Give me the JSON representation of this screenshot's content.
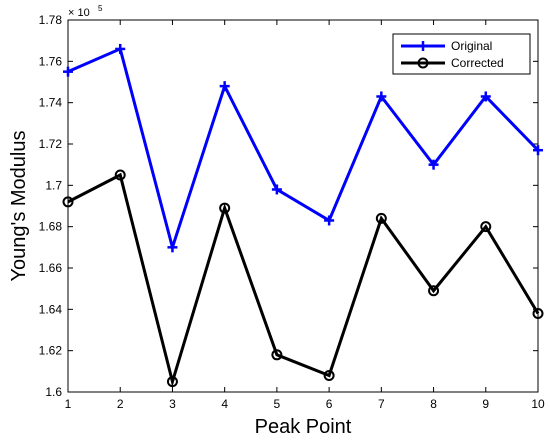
{
  "chart_data": {
    "type": "line",
    "title": "",
    "xlabel": "Peak Point",
    "ylabel": "Young's Modulus",
    "y_multiplier_label": "× 10",
    "y_multiplier_exponent": "5",
    "xlim": [
      1,
      10
    ],
    "ylim": [
      1.6,
      1.78
    ],
    "x_ticks": [
      1,
      2,
      3,
      4,
      5,
      6,
      7,
      8,
      9,
      10
    ],
    "x_tick_labels": [
      "1",
      "2",
      "3",
      "4",
      "5",
      "6",
      "7",
      "8",
      "9",
      "10"
    ],
    "y_ticks": [
      1.6,
      1.62,
      1.64,
      1.66,
      1.68,
      1.7,
      1.72,
      1.74,
      1.76,
      1.78
    ],
    "y_tick_labels": [
      "1.6",
      "1.62",
      "1.64",
      "1.66",
      "1.68",
      "1.7",
      "1.72",
      "1.74",
      "1.76",
      "1.78"
    ],
    "grid": false,
    "legend_position": "top-right",
    "x": [
      1,
      2,
      3,
      4,
      5,
      6,
      7,
      8,
      9,
      10
    ],
    "series": [
      {
        "name": "Original",
        "color": "#0000ff",
        "marker": "plus",
        "values": [
          1.755,
          1.766,
          1.67,
          1.748,
          1.698,
          1.683,
          1.743,
          1.71,
          1.743,
          1.717
        ]
      },
      {
        "name": "Corrected",
        "color": "#000000",
        "marker": "circle",
        "values": [
          1.692,
          1.705,
          1.605,
          1.689,
          1.618,
          1.608,
          1.684,
          1.649,
          1.68,
          1.638
        ]
      }
    ]
  }
}
